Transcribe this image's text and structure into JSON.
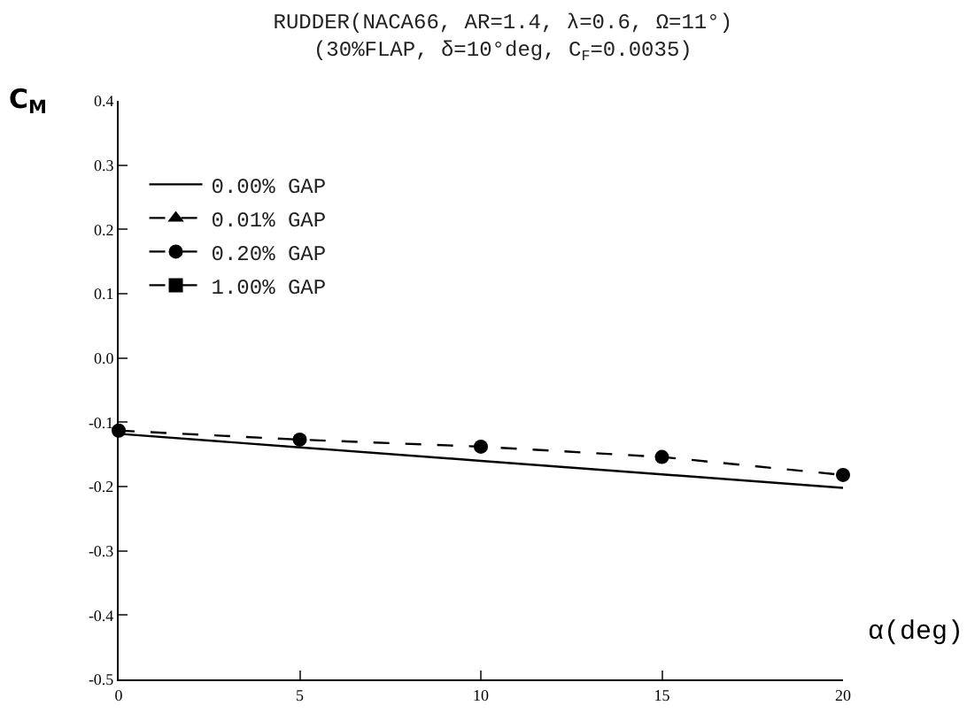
{
  "chart_data": {
    "type": "line",
    "title": "RUDDER(NACA66, AR=1.4, λ=0.6, Ω=11°)",
    "subtitle": "(30%FLAP, δ=10°deg, C$_{F}$=0.0035)",
    "xlabel": "α(deg)",
    "ylabel": "C$_{M}$",
    "x": [
      0,
      5,
      10,
      15,
      20
    ],
    "series": [
      {
        "name": "0.00% GAP",
        "color": "#000000",
        "values": [
          -0.118,
          -0.139,
          -0.16,
          -0.181,
          -0.202
        ],
        "line_style": "solid",
        "marker": "none"
      },
      {
        "name": "0.01% GAP",
        "color": "#000000",
        "values": [
          null,
          null,
          null,
          null,
          null
        ],
        "line_style": "dashed",
        "marker": "triangle"
      },
      {
        "name": "0.20% GAP",
        "color": "#000000",
        "values": [
          -0.113,
          -0.127,
          -0.138,
          -0.154,
          -0.182
        ],
        "line_style": "dashed",
        "marker": "circle"
      },
      {
        "name": "1.00% GAP",
        "color": "#000000",
        "values": [
          null,
          null,
          null,
          null,
          null
        ],
        "line_style": "dashed",
        "marker": "square"
      }
    ],
    "xlim": [
      0,
      20
    ],
    "xticks": [
      0,
      5,
      10,
      15,
      20
    ],
    "ylim": [
      -0.5,
      0.4
    ],
    "yticks": [
      {
        "value": -0.5,
        "label": "-0.5"
      },
      {
        "value": -0.4,
        "label": "-0.4"
      },
      {
        "value": -0.3,
        "label": "-0.3"
      },
      {
        "value": -0.2,
        "label": "-0.2"
      },
      {
        "value": -0.1,
        "label": "-0.1"
      },
      {
        "value": 0,
        "label": "0.0"
      },
      {
        "value": 0.1,
        "label": "0.1"
      },
      {
        "value": 0.2,
        "label": "0.2"
      },
      {
        "value": 0.3,
        "label": "0.3"
      },
      {
        "value": 0.4,
        "label": "0.4"
      }
    ],
    "grid": false,
    "legend": "top left"
  }
}
